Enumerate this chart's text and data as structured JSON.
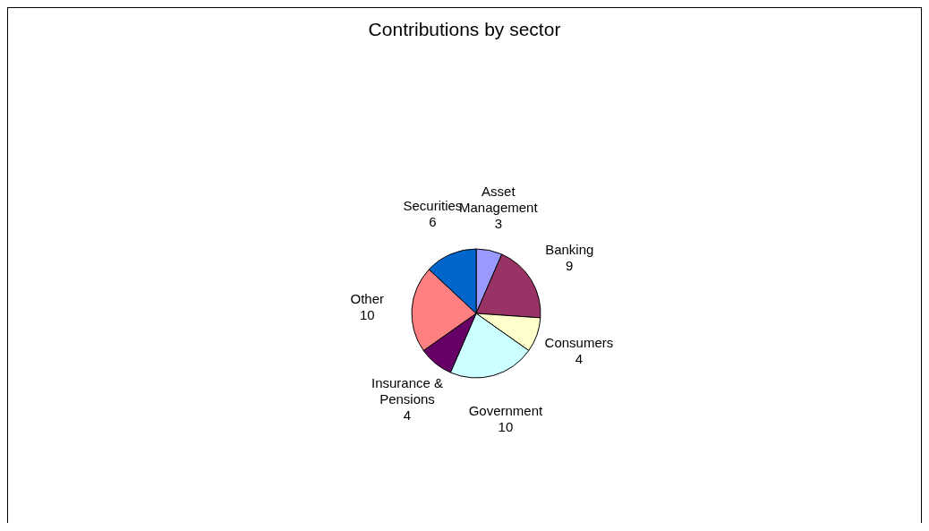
{
  "chart_data": {
    "type": "pie",
    "title": "Contributions by sector",
    "categories": [
      "Asset Management",
      "Banking",
      "Consumers",
      "Government",
      "Insurance & Pensions",
      "Other",
      "Securities"
    ],
    "values": [
      3,
      9,
      4,
      10,
      4,
      10,
      6
    ],
    "colors": [
      "#9999ff",
      "#993366",
      "#ffffcc",
      "#ccffff",
      "#660066",
      "#ff8080",
      "#0066cc"
    ],
    "data_labels": true
  }
}
